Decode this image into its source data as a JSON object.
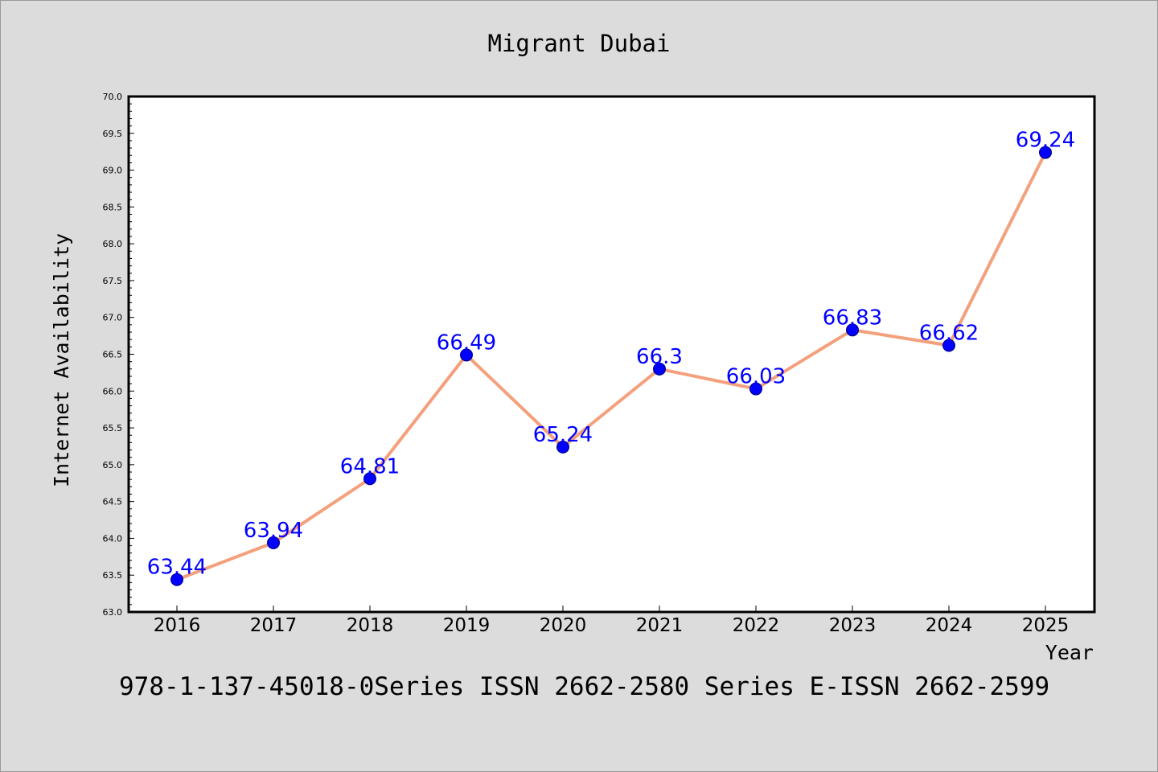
{
  "colors": {
    "background": "#dcdcdc",
    "plot_background": "#ffffff",
    "line": "#f4a07c",
    "marker": "#0000ff",
    "data_label": "#0000ff"
  },
  "footer": "978-1-137-45018-0Series ISSN 2662-2580 Series E-ISSN 2662-2599",
  "chart_data": {
    "type": "line",
    "title": "Migrant Dubai",
    "xlabel": "Year",
    "ylabel": "Internet Availability",
    "categories": [
      "2016",
      "2017",
      "2018",
      "2019",
      "2020",
      "2021",
      "2022",
      "2023",
      "2024",
      "2025"
    ],
    "series": [
      {
        "values": [
          63.44,
          63.94,
          64.81,
          66.49,
          65.24,
          66.3,
          66.03,
          66.83,
          66.62,
          69.24
        ],
        "labels": [
          "63.44",
          "63.94",
          "64.81",
          "66.49",
          "65.24",
          "66.3",
          "66.03",
          "66.83",
          "66.62",
          "69.24"
        ]
      }
    ],
    "ylim": [
      63.0,
      70.0
    ],
    "yticks": [
      "63.0",
      "63.5",
      "64.0",
      "64.5",
      "65.0",
      "65.5",
      "66.0",
      "66.5",
      "67.0",
      "67.5",
      "68.0",
      "68.5",
      "69.0",
      "69.5",
      "70.0"
    ],
    "grid": false,
    "legend": "none"
  }
}
